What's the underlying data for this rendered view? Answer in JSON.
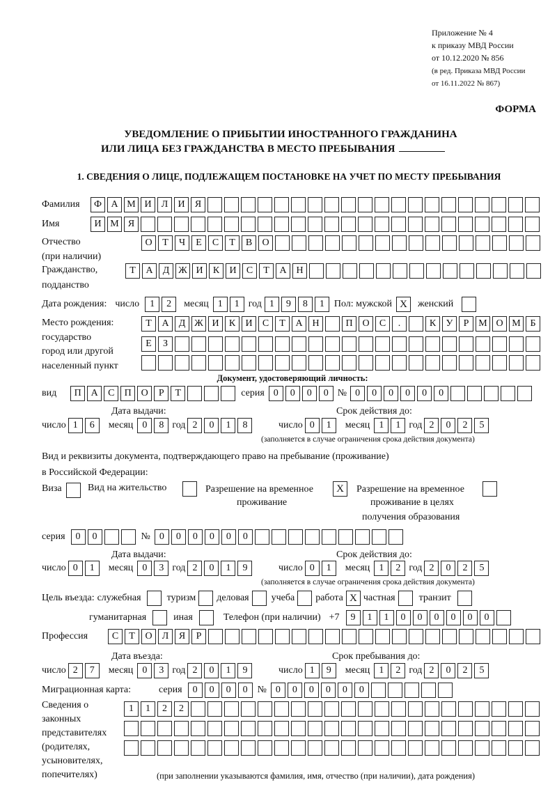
{
  "header": {
    "appendix": [
      "Приложение № 4",
      "к приказу МВД России",
      "от 10.12.2020 № 856"
    ],
    "revision": [
      "(в ред. Приказа МВД России",
      "от 16.11.2022 № 867)"
    ],
    "form_label": "ФОРМА",
    "title": [
      "УВЕДОМЛЕНИЕ О ПРИБЫТИИ ИНОСТРАННОГО ГРАЖДАНИНА",
      "ИЛИ ЛИЦА БЕЗ ГРАЖДАНСТВА В МЕСТО ПРЕБЫВАНИЯ"
    ],
    "section1": "1. СВЕДЕНИЯ О ЛИЦЕ, ПОДЛЕЖАЩЕМ ПОСТАНОВКЕ НА УЧЕТ ПО МЕСТУ ПРЕБЫВАНИЯ"
  },
  "person": {
    "surname": {
      "label": "Фамилия",
      "value": "ФАМИЛИЯ"
    },
    "name": {
      "label": "Имя",
      "value": "ИМЯ"
    },
    "patronymic": {
      "label": "Отчество",
      "label2": "(при наличии)",
      "value": "ОТЧЕСТВО"
    },
    "citizenship": {
      "label": "Гражданство,",
      "label2": "подданство",
      "value": "ТАДЖИКИСТАН"
    },
    "birth_date": {
      "label": "Дата рождения:",
      "day_label": "число",
      "day": "12",
      "month_label": "месяц",
      "month": "11",
      "year_label": "год",
      "year": "1981"
    },
    "sex": {
      "label": "Пол: мужской",
      "male_mark": "X",
      "female_label": "женский",
      "female_mark": ""
    },
    "birth_place": {
      "labels": [
        "Место рождения:",
        "государство",
        "город или другой",
        "населенный пункт"
      ],
      "rows": [
        "ТАДЖИКИСТАН ПОС. КУРМОМБ",
        "ЕЗ",
        ""
      ]
    }
  },
  "identity_doc": {
    "heading": "Документ, удостоверяющий личность:",
    "type_label": "вид",
    "type": "ПАСПОРТ",
    "series_label": "серия",
    "series": "0000",
    "number_label": "№",
    "number": "000000",
    "issue_label": "Дата выдачи:",
    "expiry_label": "Срок действия до:",
    "issue": {
      "day": "16",
      "month": "08",
      "year": "2018"
    },
    "expiry": {
      "day": "01",
      "month": "11",
      "year": "2025"
    },
    "note": "(заполняется в случае ограничения срока действия документа)"
  },
  "stay_doc": {
    "heading1": "Вид и реквизиты документа, подтверждающего право на пребывание (проживание)",
    "heading2": "в Российской Федерации:",
    "options": [
      {
        "label": "Виза",
        "mark": ""
      },
      {
        "label": "Вид на жительство",
        "mark": ""
      },
      {
        "label": "Разрешение на временное",
        "label2": "проживание",
        "mark": "X"
      },
      {
        "label": "Разрешение на временное",
        "label2": "проживание в целях",
        "label3": "получения образования",
        "mark": ""
      }
    ],
    "series_label": "серия",
    "series": "00",
    "number_label": "№",
    "number": "000000",
    "issue_label": "Дата выдачи:",
    "expiry_label": "Срок действия до:",
    "issue": {
      "day": "01",
      "month": "03",
      "year": "2019"
    },
    "expiry": {
      "day": "01",
      "month": "12",
      "year": "2025"
    },
    "note": "(заполняется в случае ограничения срока действия документа)"
  },
  "purpose": {
    "label": "Цель въезда:",
    "options": [
      {
        "label": "служебная",
        "mark": ""
      },
      {
        "label": "туризм",
        "mark": ""
      },
      {
        "label": "деловая",
        "mark": ""
      },
      {
        "label": "учеба",
        "mark": ""
      },
      {
        "label": "работа",
        "mark": "X"
      },
      {
        "label": "частная",
        "mark": ""
      },
      {
        "label": "транзит",
        "mark": ""
      },
      {
        "label": "гуманитарная",
        "mark": ""
      },
      {
        "label": "иная",
        "mark": ""
      }
    ]
  },
  "phone": {
    "label": "Телефон (при наличии)",
    "prefix": "+7",
    "value": "911000000"
  },
  "profession": {
    "label": "Профессия",
    "value": "СТОЛЯР"
  },
  "entry": {
    "entry_label": "Дата въезда:",
    "stay_label": "Срок пребывания до:",
    "entry_date": {
      "day": "27",
      "month": "03",
      "year": "2019"
    },
    "stay_until": {
      "day": "19",
      "month": "12",
      "year": "2025"
    }
  },
  "date_labels": {
    "day": "число",
    "month": "месяц",
    "year": "год"
  },
  "migration_card": {
    "label": "Миграционная карта:",
    "series_label": "серия",
    "series": "0000",
    "number_label": "№",
    "number": "000000"
  },
  "representatives": {
    "labels": [
      "Сведения о",
      "законных",
      "представителях",
      "(родителях,",
      "усыновителях,",
      "попечителях)"
    ],
    "rows": [
      "1122",
      "",
      ""
    ],
    "note": "(при заполнении указываются фамилия, имя, отчество (при наличии), дата рождения)"
  }
}
